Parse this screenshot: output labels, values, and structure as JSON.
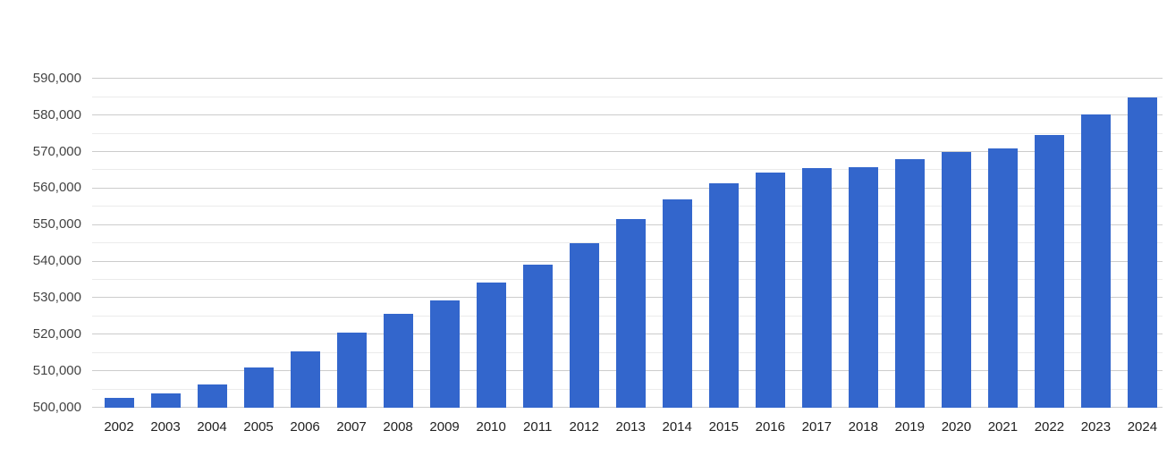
{
  "chart_data": {
    "type": "bar",
    "title": "",
    "xlabel": "",
    "ylabel": "",
    "legend": "none",
    "grid": true,
    "background_color": "#ffffff",
    "bar_color": "#3366cc",
    "major_grid_color": "#cccccc",
    "minor_grid_color": "#ebebeb",
    "y_axis_label_color": "#444444",
    "x_axis_label_color": "#222222",
    "ylim": [
      500000,
      590000
    ],
    "y_major_tick_step": 10000,
    "y_minor_tick_step": 5000,
    "y_tick_labels": [
      "500,000",
      "510,000",
      "520,000",
      "530,000",
      "540,000",
      "550,000",
      "560,000",
      "570,000",
      "580,000",
      "590,000"
    ],
    "y_tick_values": [
      500000,
      510000,
      520000,
      530000,
      540000,
      550000,
      560000,
      570000,
      580000,
      590000
    ],
    "categories": [
      "2002",
      "2003",
      "2004",
      "2005",
      "2006",
      "2007",
      "2008",
      "2009",
      "2010",
      "2011",
      "2012",
      "2013",
      "2014",
      "2015",
      "2016",
      "2017",
      "2018",
      "2019",
      "2020",
      "2021",
      "2022",
      "2023",
      "2024"
    ],
    "values": [
      502500,
      503800,
      506200,
      510800,
      515300,
      520300,
      525500,
      529100,
      534000,
      539000,
      544900,
      551400,
      556700,
      561100,
      564100,
      565300,
      565700,
      567900,
      569700,
      570700,
      574400,
      580000,
      584600
    ]
  }
}
